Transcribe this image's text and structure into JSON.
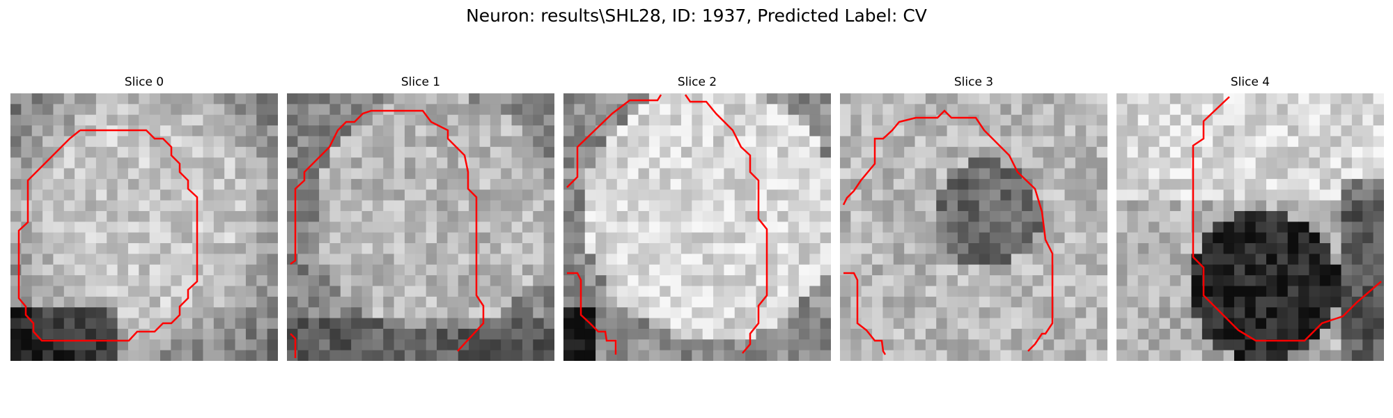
{
  "figure": {
    "title": "Neuron: results\\SHL28, ID: 1937, Predicted Label: CV"
  },
  "overlay_color": "#ff0000",
  "slices": [
    {
      "title": "Slice 0"
    },
    {
      "title": "Slice 1"
    },
    {
      "title": "Slice 2"
    },
    {
      "title": "Slice 3"
    },
    {
      "title": "Slice 4"
    }
  ]
}
